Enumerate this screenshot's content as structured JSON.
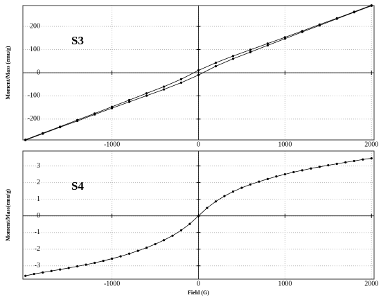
{
  "chart_data": [
    {
      "type": "line",
      "annotation": "S3",
      "ylabel": "Moment/Mass (emu/g)",
      "x": [
        -2000,
        -1800,
        -1600,
        -1400,
        -1200,
        -1000,
        -800,
        -600,
        -400,
        -200,
        0,
        200,
        400,
        600,
        800,
        1000,
        1200,
        1400,
        1600,
        1800,
        2000
      ],
      "series": [
        {
          "color": "#000000",
          "values": [
            -289,
            -261,
            -233,
            -204,
            -176,
            -147,
            -118,
            -89,
            -60,
            -28,
            10,
            43,
            72,
            99,
            126,
            153,
            180,
            208,
            235,
            263,
            291
          ]
        },
        {
          "color": "#000000",
          "values": [
            -291,
            -263,
            -235,
            -208,
            -180,
            -153,
            -126,
            -99,
            -72,
            -43,
            -10,
            28,
            60,
            89,
            118,
            147,
            176,
            204,
            233,
            261,
            289
          ]
        }
      ],
      "xlim": [
        -2030,
        2030
      ],
      "ylim": [
        -290,
        290
      ],
      "xticks": [
        -1000,
        0,
        1000,
        2000
      ],
      "yticks": [
        -200,
        -100,
        0,
        100,
        200
      ],
      "grid": true
    },
    {
      "type": "line",
      "annotation": "S4",
      "ylabel": "Moment/Mass(emu/g)",
      "xlabel": "Field (G)",
      "x": [
        -2000,
        -1900,
        -1800,
        -1700,
        -1600,
        -1500,
        -1400,
        -1300,
        -1200,
        -1100,
        -1000,
        -900,
        -800,
        -700,
        -600,
        -500,
        -400,
        -300,
        -200,
        -100,
        0,
        100,
        200,
        300,
        400,
        500,
        600,
        700,
        800,
        900,
        1000,
        1100,
        1200,
        1300,
        1400,
        1500,
        1600,
        1700,
        1800,
        1900,
        2000
      ],
      "series": [
        {
          "color": "#000000",
          "values": [
            -3.6,
            -3.49,
            -3.4,
            -3.31,
            -3.22,
            -3.13,
            -3.03,
            -2.93,
            -2.82,
            -2.7,
            -2.57,
            -2.43,
            -2.27,
            -2.1,
            -1.91,
            -1.7,
            -1.46,
            -1.19,
            -0.87,
            -0.48,
            0,
            0.48,
            0.87,
            1.19,
            1.46,
            1.69,
            1.89,
            2.06,
            2.22,
            2.37,
            2.5,
            2.63,
            2.74,
            2.85,
            2.95,
            3.04,
            3.13,
            3.22,
            3.3,
            3.39,
            3.46
          ]
        }
      ],
      "xlim": [
        -2030,
        2030
      ],
      "ylim": [
        -3.8,
        3.9
      ],
      "xticks": [
        -1000,
        0,
        1000,
        2000
      ],
      "yticks": [
        -3,
        -2,
        -1,
        0,
        1,
        2,
        3
      ],
      "grid": true
    }
  ]
}
